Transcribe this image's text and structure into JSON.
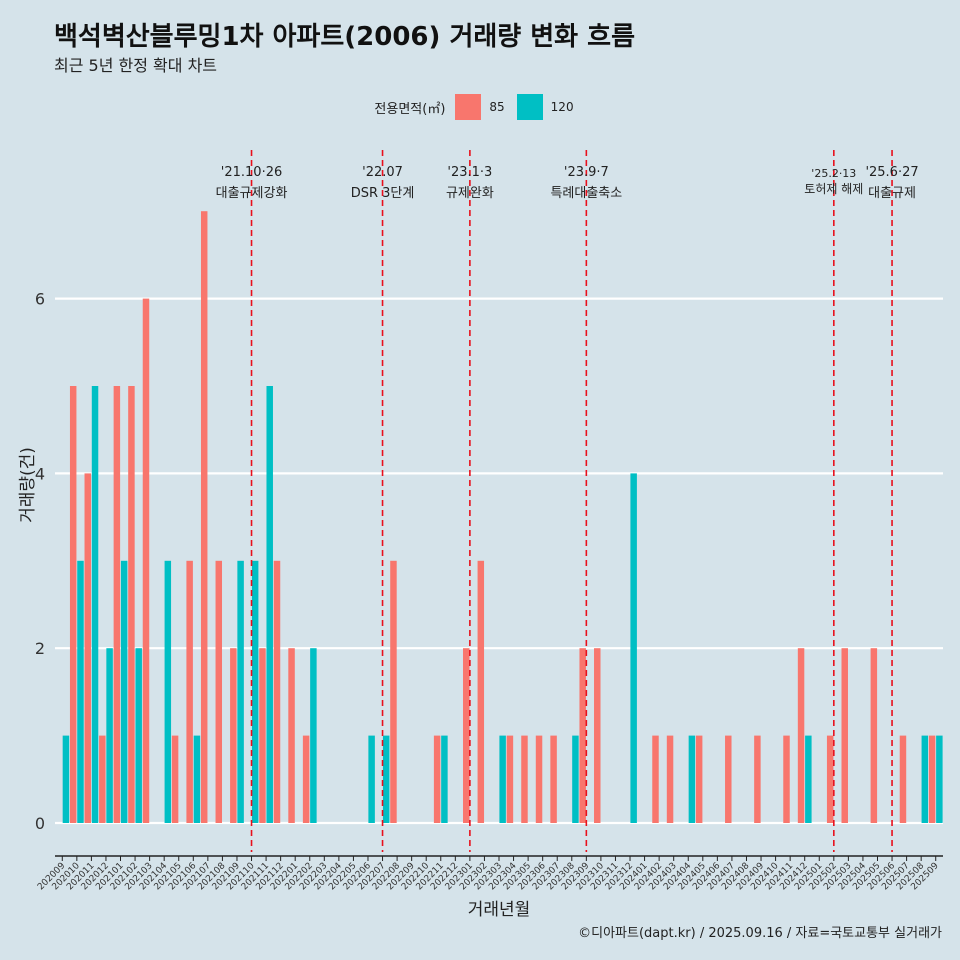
{
  "title": "백석벽산블루밍1차 아파트(2006) 거래량 변화 흐름",
  "subtitle": "최근 5년 한정 확대 차트",
  "caption": "©디아파트(dapt.kr) / 2025.09.16 / 자료=국토교통부 실거래가",
  "legend": {
    "title": "전용면적(㎡)",
    "items": [
      {
        "label": "85",
        "color": "#f8766d"
      },
      {
        "label": "120",
        "color": "#00bfc4"
      }
    ]
  },
  "chart_data": {
    "type": "bar",
    "xlabel": "거래년월",
    "ylabel": "거래량(건)",
    "ylim": [
      0,
      7.5
    ],
    "yticks": [
      0,
      2,
      4,
      6
    ],
    "categories": [
      "202009",
      "202010",
      "202011",
      "202012",
      "202101",
      "202102",
      "202103",
      "202104",
      "202105",
      "202106",
      "202107",
      "202108",
      "202109",
      "202110",
      "202111",
      "202112",
      "202201",
      "202202",
      "202203",
      "202204",
      "202205",
      "202206",
      "202207",
      "202208",
      "202209",
      "202210",
      "202211",
      "202212",
      "202301",
      "202302",
      "202303",
      "202304",
      "202305",
      "202306",
      "202307",
      "202308",
      "202309",
      "202310",
      "202311",
      "202312",
      "202401",
      "202402",
      "202403",
      "202404",
      "202405",
      "202406",
      "202407",
      "202408",
      "202409",
      "202410",
      "202411",
      "202412",
      "202501",
      "202502",
      "202503",
      "202504",
      "202505",
      "202506",
      "202507",
      "202508",
      "202509"
    ],
    "series": [
      {
        "name": "85",
        "color": "#f8766d",
        "values": [
          0,
          5,
          4,
          1,
          5,
          5,
          6,
          0,
          1,
          3,
          7,
          3,
          2,
          0,
          2,
          3,
          2,
          1,
          0,
          0,
          0,
          0,
          0,
          3,
          0,
          0,
          1,
          0,
          2,
          3,
          0,
          1,
          1,
          1,
          1,
          0,
          2,
          2,
          0,
          0,
          0,
          1,
          1,
          0,
          1,
          0,
          1,
          0,
          1,
          0,
          1,
          2,
          0,
          1,
          2,
          0,
          2,
          0,
          1,
          0,
          1
        ]
      },
      {
        "name": "120",
        "color": "#00bfc4",
        "values": [
          1,
          3,
          5,
          2,
          3,
          2,
          0,
          3,
          0,
          1,
          0,
          0,
          3,
          3,
          5,
          0,
          0,
          2,
          0,
          0,
          0,
          1,
          1,
          0,
          0,
          0,
          1,
          0,
          0,
          0,
          1,
          0,
          0,
          0,
          0,
          1,
          0,
          0,
          0,
          4,
          0,
          0,
          0,
          1,
          0,
          0,
          0,
          0,
          0,
          0,
          0,
          1,
          0,
          0,
          0,
          0,
          0,
          0,
          0,
          1,
          1
        ]
      }
    ],
    "events": [
      {
        "date": "'21.10·26",
        "label": "대출규제강화",
        "at": "202110"
      },
      {
        "date": "'22.07",
        "label": "DSR 3단계",
        "at": "202207"
      },
      {
        "date": "'23.1·3",
        "label": "규제완화",
        "at": "202301"
      },
      {
        "date": "'23.9·7",
        "label": "특례대출축소",
        "at": "202309"
      },
      {
        "date": "'25.2·13",
        "label": "토허제 해제",
        "at": "202502"
      },
      {
        "date": "'25.6·27",
        "label": "대출규제",
        "at": "202506"
      }
    ]
  }
}
